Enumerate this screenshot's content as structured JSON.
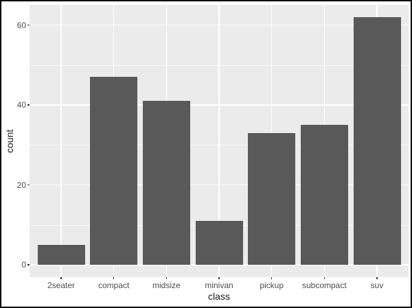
{
  "figure": {
    "background": "#ffffff",
    "border_color": "#000000"
  },
  "chart_data": {
    "type": "bar",
    "title": "",
    "xlabel": "class",
    "ylabel": "count",
    "categories": [
      "2seater",
      "compact",
      "midsize",
      "minivan",
      "pickup",
      "subcompact",
      "suv"
    ],
    "values": [
      5,
      47,
      41,
      11,
      33,
      35,
      62
    ],
    "ylim": [
      0,
      62
    ],
    "y_ticks": [
      0,
      20,
      40,
      60
    ],
    "y_minor_gridlines": [
      10,
      30,
      50
    ],
    "legend": "none",
    "grid": "on",
    "colors": {
      "bar_fill": "#595959",
      "panel_background": "#ebebeb",
      "gridline": "#ffffff",
      "axis_text": "#4d4d4d",
      "axis_title": "#1a1a1a"
    }
  }
}
